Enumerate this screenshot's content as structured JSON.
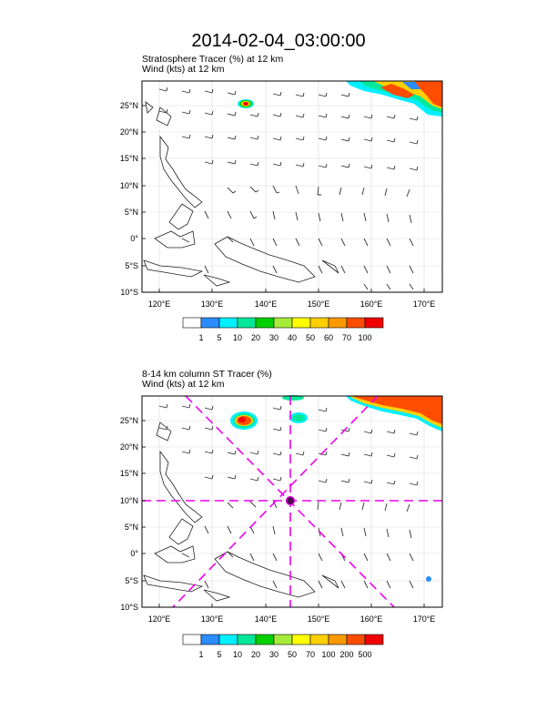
{
  "page": {
    "title": "2014-02-04_03:00:00"
  },
  "colors": {
    "blue": "#2a8cff",
    "cyan": "#00f0ff",
    "teal": "#00e89a",
    "green": "#00d000",
    "lime": "#a6ec3a",
    "yellow": "#ffff00",
    "gold": "#ffd000",
    "orange": "#ff9900",
    "red_orange": "#ff4d00",
    "red": "#f00000",
    "magenta": "#ee00ee"
  },
  "panels": [
    {
      "subtitle_line1": "Stratosphere Tracer   (%)    at   12 km",
      "subtitle_line2": "Wind   (kts)      at   12 km",
      "lat_labels": [
        "25°N",
        "20°N",
        "15°N",
        "10°N",
        "5°N",
        "0°",
        "5°S",
        "10°S"
      ],
      "lon_labels": [
        "120°E",
        "130°E",
        "140°E",
        "150°E",
        "160°E",
        "170°E"
      ],
      "colorbar_labels": [
        "1",
        "5",
        "10",
        "20",
        "30",
        "40",
        "50",
        "60",
        "70",
        "100"
      ],
      "has_crosshair": false
    },
    {
      "subtitle_line1": "8-14 km column ST Tracer   (%)",
      "subtitle_line2": "Wind   (kts)      at   12 km",
      "lat_labels": [
        "25°N",
        "20°N",
        "15°N",
        "10°N",
        "5°N",
        "0°",
        "5°S",
        "10°S"
      ],
      "lon_labels": [
        "120°E",
        "130°E",
        "140°E",
        "150°E",
        "160°E",
        "170°E"
      ],
      "colorbar_labels": [
        "1",
        "5",
        "10",
        "20",
        "30",
        "50",
        "70",
        "100",
        "200",
        "500"
      ],
      "has_crosshair": true
    }
  ]
}
